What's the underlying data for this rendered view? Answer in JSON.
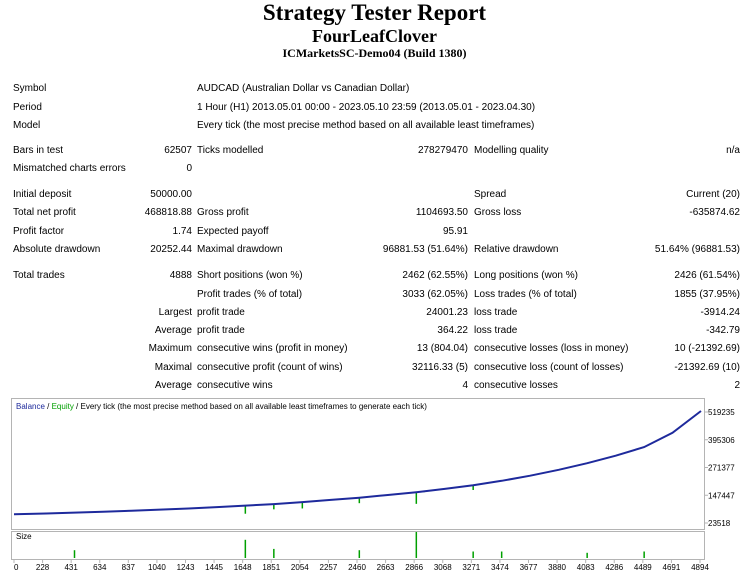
{
  "header": {
    "title": "Strategy Tester Report",
    "expert": "FourLeafClover",
    "server": "ICMarketsSC-Demo04 (Build 1380)"
  },
  "info": {
    "symbol_label": "Symbol",
    "symbol_value": "AUDCAD (Australian Dollar vs Canadian Dollar)",
    "period_label": "Period",
    "period_value": "1 Hour (H1) 2013.05.01 00:00 - 2023.05.10 23:59 (2013.05.01 - 2023.04.30)",
    "model_label": "Model",
    "model_value": "Every tick (the most precise method based on all available least timeframes)"
  },
  "stats": {
    "bars_label": "Bars in test",
    "bars_value": "62507",
    "ticks_label": "Ticks modelled",
    "ticks_value": "278279470",
    "quality_label": "Modelling quality",
    "quality_value": "n/a",
    "mismatched_label": "Mismatched charts errors",
    "mismatched_value": "0",
    "deposit_label": "Initial deposit",
    "deposit_value": "50000.00",
    "spread_label": "Spread",
    "spread_value": "Current (20)",
    "netprofit_label": "Total net profit",
    "netprofit_value": "468818.88",
    "grossprofit_label": "Gross profit",
    "grossprofit_value": "1104693.50",
    "grossloss_label": "Gross loss",
    "grossloss_value": "-635874.62",
    "pf_label": "Profit factor",
    "pf_value": "1.74",
    "payoff_label": "Expected payoff",
    "payoff_value": "95.91",
    "absdd_label": "Absolute drawdown",
    "absdd_value": "20252.44",
    "maxdd_label": "Maximal drawdown",
    "maxdd_value": "96881.53 (51.64%)",
    "reldd_label": "Relative drawdown",
    "reldd_value": "51.64% (96881.53)",
    "trades_label": "Total trades",
    "trades_value": "4888",
    "short_label": "Short positions (won %)",
    "short_value": "2462 (62.55%)",
    "long_label": "Long positions (won %)",
    "long_value": "2426 (61.54%)",
    "ptrades_label": "Profit trades (% of total)",
    "ptrades_value": "3033 (62.05%)",
    "ltrades_label": "Loss trades (% of total)",
    "ltrades_value": "1855 (37.95%)",
    "largest_label": "Largest",
    "largest_profit_label": "profit trade",
    "largest_profit_value": "24001.23",
    "largest_loss_label": "loss trade",
    "largest_loss_value": "-3914.24",
    "average_label": "Average",
    "average_profit_label": "profit trade",
    "average_profit_value": "364.22",
    "average_loss_label": "loss trade",
    "average_loss_value": "-342.79",
    "maximum_label": "Maximum",
    "max_wins_label": "consecutive wins (profit in money)",
    "max_wins_value": "13 (804.04)",
    "max_losses_label": "consecutive losses (loss in money)",
    "max_losses_value": "10 (-21392.69)",
    "maximal_label": "Maximal",
    "mx_profit_label": "consecutive profit (count of wins)",
    "mx_profit_value": "32116.33 (5)",
    "mx_loss_label": "consecutive loss (count of losses)",
    "mx_loss_value": "-21392.69 (10)",
    "avg2_label": "Average",
    "avg_wins_label": "consecutive wins",
    "avg_wins_value": "4",
    "avg_losses_label": "consecutive losses",
    "avg_losses_value": "2"
  },
  "chart_data": {
    "type": "line",
    "legend": {
      "balance": "Balance",
      "sep1": " / ",
      "equity": "Equity",
      "sep2": " / ",
      "rest": "Every tick (the most precise method based on all available least timeframes to generate each tick)"
    },
    "colors": {
      "balance": "#1e2a9c",
      "equity": "#00a000",
      "size": "#00a000",
      "axis": "#b4b4b4"
    },
    "y_ticks": [
      "519235",
      "395306",
      "271377",
      "147447",
      "23518"
    ],
    "x_ticks": [
      "0",
      "228",
      "431",
      "634",
      "837",
      "1040",
      "1243",
      "1445",
      "1648",
      "1851",
      "2054",
      "2257",
      "2460",
      "2663",
      "2866",
      "3068",
      "3271",
      "3474",
      "3677",
      "3880",
      "4083",
      "4286",
      "4489",
      "4691",
      "4894"
    ],
    "ylim": [
      23518,
      519235
    ],
    "xlim": [
      0,
      4894
    ],
    "size_label": "Size",
    "balance_points": [
      [
        0,
        50000
      ],
      [
        228,
        53000
      ],
      [
        431,
        57000
      ],
      [
        634,
        61000
      ],
      [
        837,
        66000
      ],
      [
        1040,
        71000
      ],
      [
        1243,
        76000
      ],
      [
        1445,
        82000
      ],
      [
        1648,
        89000
      ],
      [
        1851,
        96000
      ],
      [
        2054,
        105000
      ],
      [
        2257,
        115000
      ],
      [
        2460,
        125000
      ],
      [
        2663,
        137000
      ],
      [
        2866,
        150000
      ],
      [
        3068,
        165000
      ],
      [
        3271,
        182000
      ],
      [
        3474,
        202000
      ],
      [
        3677,
        225000
      ],
      [
        3880,
        252000
      ],
      [
        4083,
        282000
      ],
      [
        4286,
        316000
      ],
      [
        4489,
        355000
      ],
      [
        4691,
        420000
      ],
      [
        4894,
        519235
      ]
    ],
    "equity_drops": [
      [
        1648,
        52000
      ],
      [
        1851,
        72000
      ],
      [
        2054,
        76000
      ],
      [
        2460,
        100000
      ],
      [
        2866,
        97000
      ],
      [
        2921,
        150000
      ],
      [
        3271,
        160000
      ]
    ],
    "size_spikes": [
      [
        431,
        0.3
      ],
      [
        1648,
        0.7
      ],
      [
        1851,
        0.35
      ],
      [
        2460,
        0.3
      ],
      [
        2866,
        1.0
      ],
      [
        3271,
        0.25
      ],
      [
        3474,
        0.25
      ],
      [
        4083,
        0.2
      ],
      [
        4489,
        0.25
      ]
    ]
  }
}
